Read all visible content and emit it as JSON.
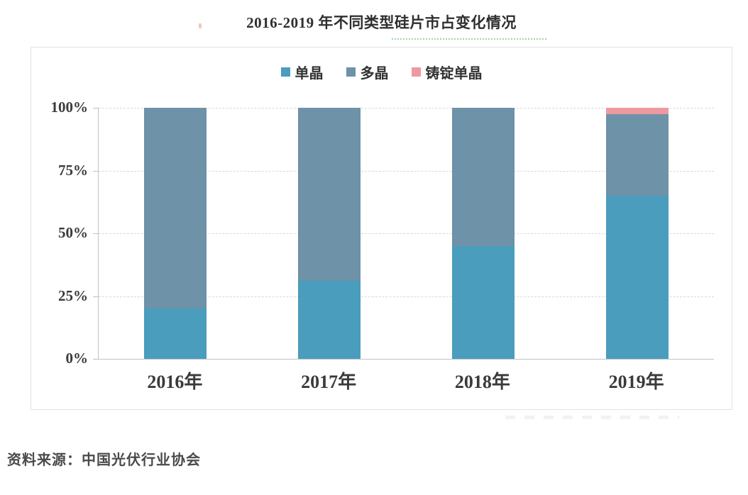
{
  "title": "2016-2019 年不同类型硅片市占变化情况",
  "source": "资料来源：中国光伏行业协会",
  "chart_data": {
    "type": "bar",
    "subtype": "stacked-percentage-column",
    "title": "2016-2019 年不同类型硅片市占变化情况",
    "categories": [
      "2016年",
      "2017年",
      "2018年",
      "2019年"
    ],
    "series": [
      {
        "name": "单晶",
        "color": "#4A9DBC",
        "values": [
          20,
          31,
          45,
          65
        ]
      },
      {
        "name": "多晶",
        "color": "#6E92A8",
        "values": [
          80,
          69,
          55,
          32.5
        ]
      },
      {
        "name": "铸锭单晶",
        "color": "#EE99A0",
        "values": [
          0,
          0,
          0,
          2.5
        ]
      }
    ],
    "xlabel": "",
    "ylabel": "",
    "unit": "%",
    "ylim": [
      0,
      100
    ],
    "y_ticks": [
      "0%",
      "25%",
      "50%",
      "75%",
      "100%"
    ],
    "grid": "dashed-horizontal",
    "legend_position": "top-center",
    "colors": {
      "grid": "#d8d8d8",
      "axis": "#c2c2c2",
      "text": "#3a3a3a",
      "panel_border": "#e3e3e3"
    }
  }
}
